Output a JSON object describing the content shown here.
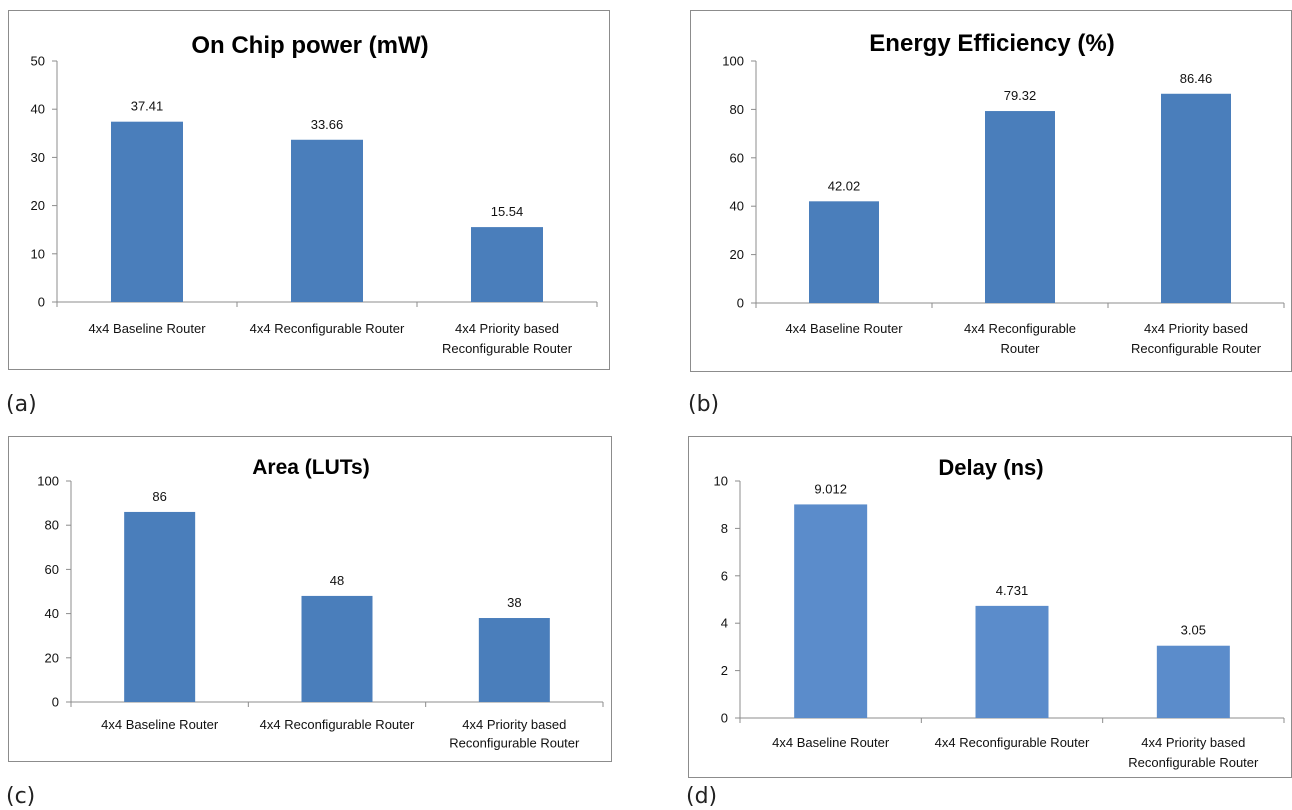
{
  "captions": {
    "a": "(a)",
    "b": "(b)",
    "c": "(c)",
    "d": "(d)"
  },
  "chart_data": [
    {
      "type": "bar",
      "title": "On Chip power (mW)",
      "categories": [
        [
          "4x4 Baseline Router"
        ],
        [
          "4x4 Reconfigurable Router"
        ],
        [
          "4x4 Priority based",
          "Reconfigurable Router"
        ]
      ],
      "values": [
        37.41,
        33.66,
        15.54
      ],
      "value_labels": [
        "37.41",
        "33.66",
        "15.54"
      ],
      "yticks": [
        0,
        10,
        20,
        30,
        40,
        50
      ],
      "ylim": [
        0,
        50
      ],
      "bar_color": "#4a7ebb",
      "grid": false
    },
    {
      "type": "bar",
      "title": "Energy Efficiency  (%)",
      "categories": [
        [
          "4x4 Baseline Router"
        ],
        [
          "4x4 Reconfigurable",
          "Router"
        ],
        [
          "4x4 Priority based",
          "Reconfigurable Router"
        ]
      ],
      "values": [
        42.02,
        79.32,
        86.46
      ],
      "value_labels": [
        "42.02",
        "79.32",
        "86.46"
      ],
      "yticks": [
        0,
        20,
        40,
        60,
        80,
        100
      ],
      "ylim": [
        0,
        100
      ],
      "bar_color": "#4a7ebb",
      "grid": false
    },
    {
      "type": "bar",
      "title": "Area (LUTs)",
      "categories": [
        [
          "4x4 Baseline Router"
        ],
        [
          "4x4 Reconfigurable Router"
        ],
        [
          "4x4 Priority based",
          "Reconfigurable Router"
        ]
      ],
      "values": [
        86,
        48,
        38
      ],
      "value_labels": [
        "86",
        "48",
        "38"
      ],
      "yticks": [
        0,
        20,
        40,
        60,
        80,
        100
      ],
      "ylim": [
        0,
        100
      ],
      "bar_color": "#4a7ebb",
      "grid": false
    },
    {
      "type": "bar",
      "title": "Delay (ns)",
      "categories": [
        [
          "4x4 Baseline Router"
        ],
        [
          "4x4 Reconfigurable Router"
        ],
        [
          "4x4 Priority based",
          "Reconfigurable Router"
        ]
      ],
      "values": [
        9.012,
        4.731,
        3.05
      ],
      "value_labels": [
        "9.012",
        "4.731",
        "3.05"
      ],
      "yticks": [
        0,
        2,
        4,
        6,
        8,
        10
      ],
      "ylim": [
        0,
        10
      ],
      "bar_color": "#5b8ccb",
      "grid": false
    }
  ]
}
